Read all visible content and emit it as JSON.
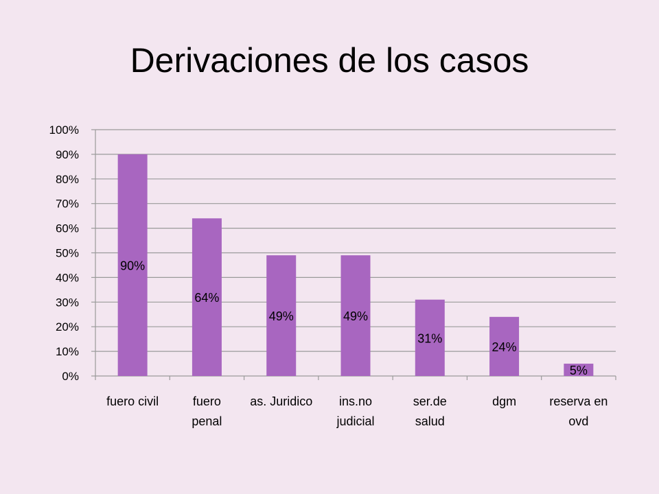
{
  "slide": {
    "title": "Derivaciones de los casos"
  },
  "colors": {
    "background": "#f3e6f0",
    "bar": "#a866c0",
    "grid": "#9a9a9a"
  },
  "chart_data": {
    "type": "bar",
    "title": "",
    "xlabel": "",
    "ylabel": "",
    "categories": [
      [
        "fuero civil"
      ],
      [
        "fuero",
        "penal"
      ],
      [
        "as. Juridico"
      ],
      [
        "ins.no",
        "judicial"
      ],
      [
        "ser.de",
        "salud"
      ],
      [
        "dgm"
      ],
      [
        "reserva en",
        "ovd"
      ]
    ],
    "values": [
      90,
      64,
      49,
      49,
      31,
      24,
      5
    ],
    "data_labels": [
      "90%",
      "64%",
      "49%",
      "49%",
      "31%",
      "24%",
      "5%"
    ],
    "ylim": [
      0,
      100
    ],
    "yticks": [
      0,
      10,
      20,
      30,
      40,
      50,
      60,
      70,
      80,
      90,
      100
    ],
    "ytick_labels": [
      "0%",
      "10%",
      "20%",
      "30%",
      "40%",
      "50%",
      "60%",
      "70%",
      "80%",
      "90%",
      "100%"
    ],
    "grid": true,
    "legend": "none"
  }
}
